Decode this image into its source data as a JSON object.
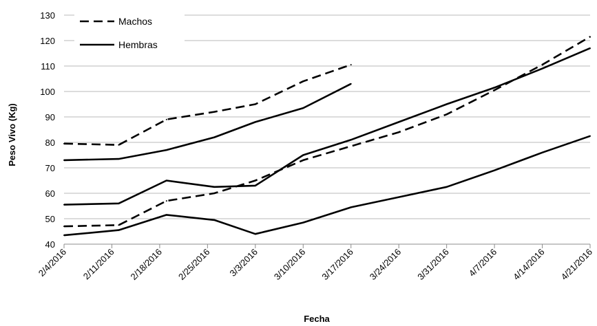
{
  "chart_data": {
    "type": "line",
    "xlabel": "Fecha",
    "ylabel": "Peso Vivo (Kg)",
    "ylim": [
      40,
      130
    ],
    "yticks": [
      "40",
      "50",
      "60",
      "70",
      "80",
      "90",
      "100",
      "110",
      "120",
      "130"
    ],
    "x_tick_labels": [
      "2/4/2016",
      "2/11/2016",
      "2/18/2016",
      "2/25/2016",
      "3/3/2016",
      "3/10/2016",
      "3/17/2016",
      "3/24/2016",
      "3/31/2016",
      "4/7/2016",
      "4/14/2016",
      "4/21/2016"
    ],
    "xlim": [
      "2016-02-04",
      "2016-04-21"
    ],
    "grid": "horizontal",
    "legend_position": "top-left",
    "legend": [
      {
        "label": "Machos",
        "style": "dashed"
      },
      {
        "label": "Hembras",
        "style": "solid"
      }
    ],
    "series": [
      {
        "legend": "Machos",
        "dashed": true,
        "points": [
          [
            "2016-02-04",
            79.5
          ],
          [
            "2016-02-12",
            79
          ],
          [
            "2016-02-19",
            89
          ],
          [
            "2016-02-26",
            92
          ],
          [
            "2016-03-03",
            95
          ],
          [
            "2016-03-10",
            104
          ],
          [
            "2016-03-17",
            110.5
          ]
        ]
      },
      {
        "legend": "Machos",
        "dashed": true,
        "points": [
          [
            "2016-02-04",
            47
          ],
          [
            "2016-02-12",
            47.5
          ],
          [
            "2016-02-19",
            57
          ],
          [
            "2016-02-26",
            60
          ],
          [
            "2016-03-03",
            65
          ],
          [
            "2016-03-10",
            73
          ],
          [
            "2016-03-24",
            84
          ],
          [
            "2016-03-31",
            91
          ],
          [
            "2016-04-07",
            100.5
          ],
          [
            "2016-04-14",
            110.5
          ],
          [
            "2016-04-21",
            121.5
          ]
        ]
      },
      {
        "legend": "Hembras",
        "dashed": false,
        "points": [
          [
            "2016-02-04",
            73
          ],
          [
            "2016-02-12",
            73.5
          ],
          [
            "2016-02-19",
            77
          ],
          [
            "2016-02-26",
            82
          ],
          [
            "2016-03-03",
            88
          ],
          [
            "2016-03-10",
            93.5
          ],
          [
            "2016-03-17",
            103
          ]
        ]
      },
      {
        "legend": "Hembras",
        "dashed": false,
        "points": [
          [
            "2016-02-04",
            55.5
          ],
          [
            "2016-02-12",
            56
          ],
          [
            "2016-02-19",
            65
          ],
          [
            "2016-02-26",
            62.5
          ],
          [
            "2016-03-03",
            63
          ],
          [
            "2016-03-10",
            75
          ],
          [
            "2016-03-17",
            81
          ],
          [
            "2016-03-24",
            88
          ],
          [
            "2016-03-31",
            95
          ],
          [
            "2016-04-07",
            101.5
          ],
          [
            "2016-04-14",
            109
          ],
          [
            "2016-04-21",
            117
          ]
        ]
      },
      {
        "legend": "Hembras",
        "dashed": false,
        "points": [
          [
            "2016-02-04",
            43.5
          ],
          [
            "2016-02-12",
            45.5
          ],
          [
            "2016-02-19",
            51.5
          ],
          [
            "2016-02-26",
            49.5
          ],
          [
            "2016-03-03",
            44
          ],
          [
            "2016-03-10",
            48.5
          ],
          [
            "2016-03-17",
            54.5
          ],
          [
            "2016-03-24",
            58.5
          ],
          [
            "2016-03-31",
            62.5
          ],
          [
            "2016-04-07",
            69
          ],
          [
            "2016-04-14",
            76
          ],
          [
            "2016-04-21",
            82.5
          ]
        ]
      }
    ]
  }
}
